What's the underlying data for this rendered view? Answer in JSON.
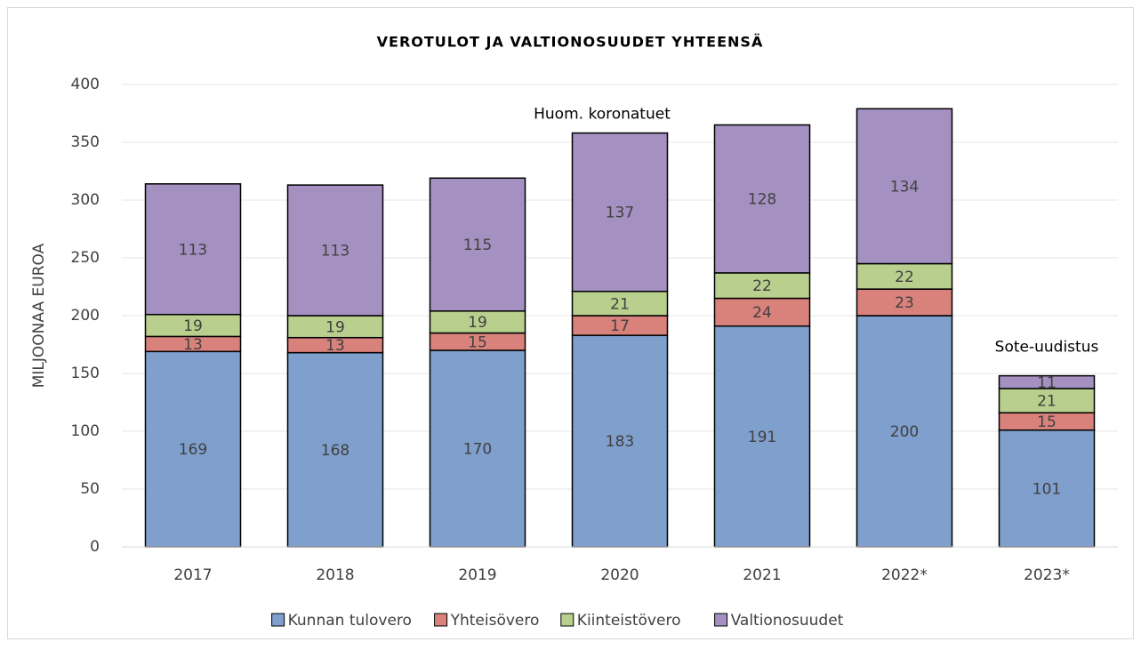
{
  "chart_data": {
    "type": "stacked_bar",
    "title": "VEROTULOT JA VALTIONOSUUDET YHTEENSÄ",
    "y_label": "MILJOONAA EUROA",
    "annotations": [
      "Huom. koronatuet",
      "Sote-uudistus"
    ],
    "categories": [
      "2017",
      "2018",
      "2019",
      "2020",
      "2021",
      "2022*",
      "2023*"
    ],
    "series": [
      {
        "name": "Kunnan tulovero",
        "color": "#7f9fcd",
        "values": [
          169,
          168,
          170,
          183,
          191,
          200,
          101
        ]
      },
      {
        "name": "Yhteisövero",
        "color": "#d9827c",
        "values": [
          13,
          13,
          15,
          17,
          24,
          23,
          15
        ]
      },
      {
        "name": "Kiinteistövero",
        "color": "#b8cf8d",
        "values": [
          19,
          19,
          19,
          21,
          22,
          22,
          21
        ]
      },
      {
        "name": "Valtionosuudet",
        "color": "#a591c1",
        "values": [
          113,
          113,
          115,
          137,
          128,
          134,
          11
        ]
      }
    ],
    "ylim": [
      0,
      400
    ],
    "yticks": [
      0,
      50,
      100,
      150,
      200,
      250,
      300,
      350,
      400
    ],
    "grid": true,
    "legend": "bottom"
  }
}
